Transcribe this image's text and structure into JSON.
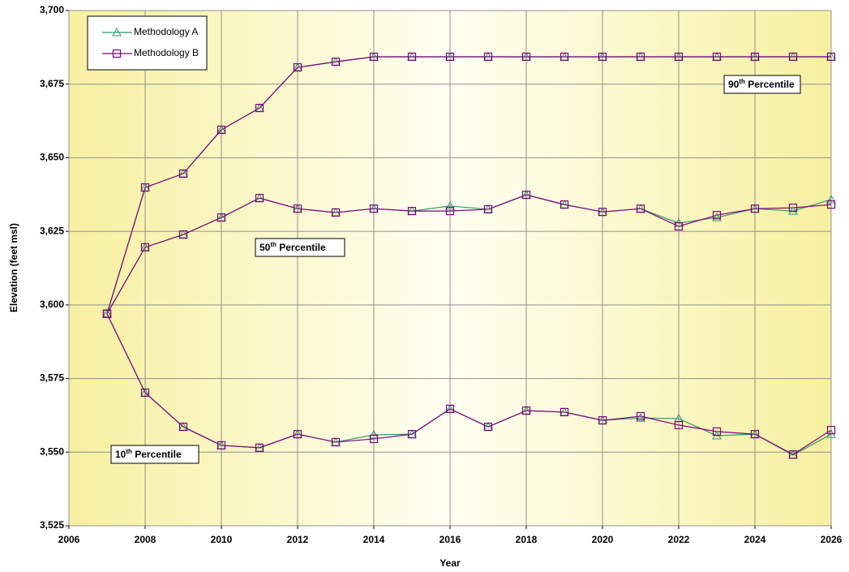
{
  "chart_data": {
    "type": "line",
    "x_label": "Year",
    "y_label": "Elevation (feet msl)",
    "x": [
      2007,
      2008,
      2009,
      2010,
      2011,
      2012,
      2013,
      2014,
      2015,
      2016,
      2017,
      2018,
      2019,
      2020,
      2021,
      2022,
      2023,
      2024,
      2025,
      2026
    ],
    "xlim": [
      2006,
      2026
    ],
    "xticks": [
      2006,
      2008,
      2010,
      2012,
      2014,
      2016,
      2018,
      2020,
      2022,
      2024,
      2026
    ],
    "ylim": [
      3525,
      3700
    ],
    "yticks": [
      {
        "value": 3525,
        "label": "3,525"
      },
      {
        "value": 3550,
        "label": "3,550"
      },
      {
        "value": 3575,
        "label": "3,575"
      },
      {
        "value": 3600,
        "label": "3,600"
      },
      {
        "value": 3625,
        "label": "3,625"
      },
      {
        "value": 3650,
        "label": "3,650"
      },
      {
        "value": 3675,
        "label": "3,675"
      },
      {
        "value": 3700,
        "label": "3,700"
      }
    ],
    "grid": true,
    "legend": "upper left",
    "series": [
      {
        "name": "Methodology A",
        "color": "#339966",
        "marker": "triangle",
        "values": [
          [
            3597,
            3639.9,
            3644.6,
            3659.5,
            3666.9,
            3680.7,
            3682.6,
            3684.3,
            3684.3,
            3684.3,
            3684.3,
            3684.3,
            3684.3,
            3684.3,
            3684.3,
            3684.3,
            3684.3,
            3684.3,
            3684.3,
            3684.3
          ],
          [
            3597,
            3619.6,
            3623.9,
            3629.7,
            3636.3,
            3632.7,
            3631.4,
            3632.7,
            3631.9,
            3633.6,
            3632.5,
            3637.4,
            3634.1,
            3631.6,
            3632.7,
            3627.8,
            3629.7,
            3632.7,
            3631.9,
            3635.8
          ],
          [
            3597,
            3570.2,
            3558.6,
            3552.3,
            3551.5,
            3556.1,
            3553.4,
            3555.9,
            3556.1,
            3564.7,
            3558.6,
            3564.1,
            3563.6,
            3560.8,
            3561.6,
            3561.4,
            3555.6,
            3556.1,
            3549.0,
            3556.1
          ]
        ]
      },
      {
        "name": "Methodology B",
        "color": "#800080",
        "marker": "square",
        "values": [
          [
            3597,
            3639.9,
            3644.6,
            3659.5,
            3666.9,
            3680.7,
            3682.6,
            3684.3,
            3684.3,
            3684.3,
            3684.3,
            3684.3,
            3684.3,
            3684.3,
            3684.3,
            3684.3,
            3684.3,
            3684.3,
            3684.3,
            3684.3
          ],
          [
            3597,
            3619.6,
            3623.9,
            3629.7,
            3636.3,
            3632.7,
            3631.4,
            3632.7,
            3631.9,
            3631.9,
            3632.5,
            3637.4,
            3634.1,
            3631.6,
            3632.7,
            3626.7,
            3630.5,
            3632.7,
            3633.0,
            3634.1
          ],
          [
            3597,
            3570.2,
            3558.6,
            3552.3,
            3551.5,
            3556.1,
            3553.4,
            3554.5,
            3556.1,
            3564.7,
            3558.6,
            3564.1,
            3563.6,
            3560.8,
            3562.2,
            3559.2,
            3557.0,
            3556.1,
            3549.2,
            3557.5
          ]
        ]
      }
    ],
    "annotations": [
      {
        "ordinal": "90",
        "suffix": "th",
        "text": " Percentile"
      },
      {
        "ordinal": "50",
        "suffix": "th",
        "text": " Percentile"
      },
      {
        "ordinal": "10",
        "suffix": "th",
        "text": " Percentile"
      }
    ]
  }
}
